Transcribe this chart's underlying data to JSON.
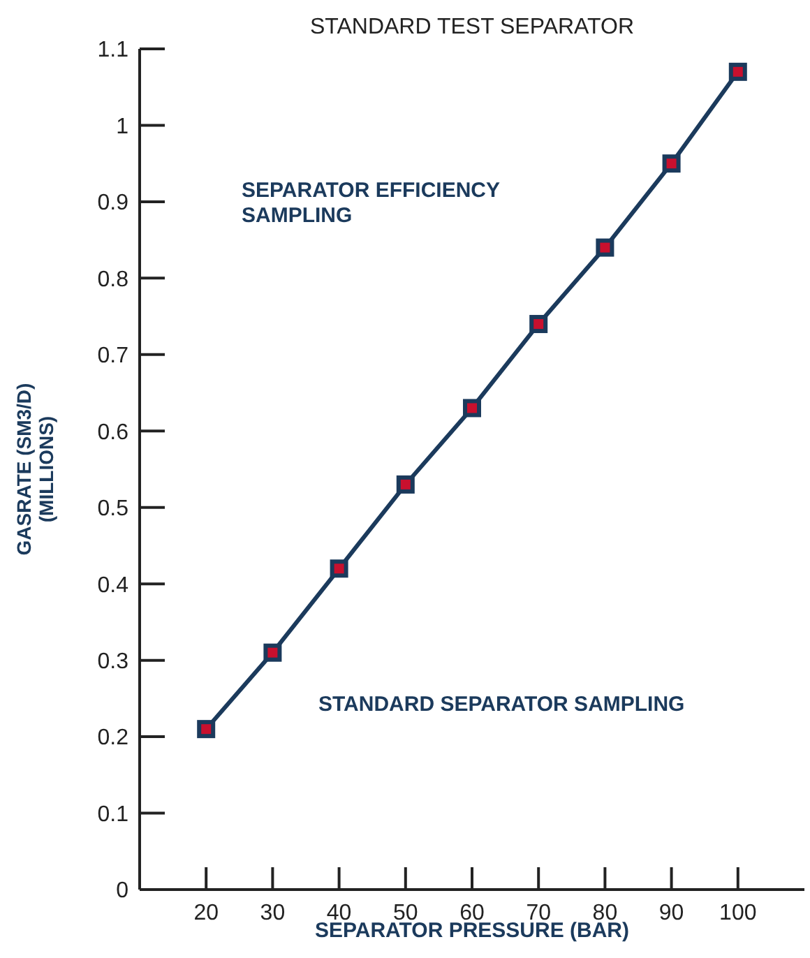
{
  "chart_data": {
    "type": "line",
    "title": "STANDARD TEST SEPARATOR",
    "xlabel": "SEPARATOR PRESSURE (BAR)",
    "ylabel": "GASRATE (SM3/D)\n(MILLIONS)",
    "x": [
      20,
      30,
      40,
      50,
      60,
      70,
      80,
      90,
      100
    ],
    "series": [
      {
        "color": "#1b3a5c",
        "values": [
          0.21,
          0.31,
          0.42,
          0.53,
          0.63,
          0.74,
          0.84,
          0.95,
          1.07
        ]
      }
    ],
    "xlim": [
      10,
      110
    ],
    "xticks": [
      20,
      30,
      40,
      50,
      60,
      70,
      80,
      90,
      100
    ],
    "ylim": [
      0,
      1.1
    ],
    "yticks": [
      0,
      0.1,
      0.2,
      0.3,
      0.4,
      0.5,
      0.6,
      0.7,
      0.8,
      0.9,
      1,
      1.1
    ],
    "marker": "square",
    "line_style": "solid",
    "grid": false,
    "legend": false,
    "annotations": [
      "SEPARATOR EFFICIENCY SAMPLING",
      "STANDARD SEPARATOR SAMPLING"
    ]
  }
}
